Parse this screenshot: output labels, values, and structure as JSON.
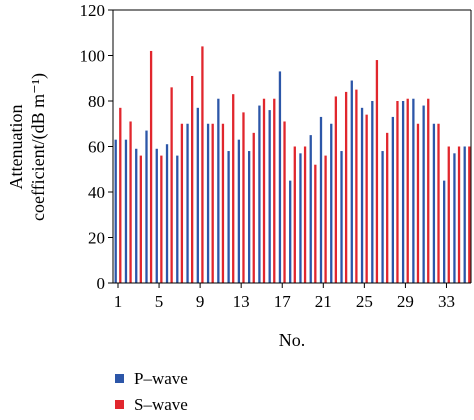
{
  "chart_data": {
    "type": "bar",
    "title": "",
    "xlabel": "No.",
    "ylabel_line1": "Attenuation",
    "ylabel_line2": "coefficient/(dB m⁻¹)",
    "xlim": [
      1,
      35
    ],
    "ylim": [
      0,
      120
    ],
    "x_ticks": [
      "1",
      "5",
      "9",
      "13",
      "17",
      "21",
      "25",
      "29",
      "33"
    ],
    "y_ticks": [
      "0",
      "20",
      "40",
      "60",
      "80",
      "100",
      "120"
    ],
    "legend_position": "bottom-left",
    "categories": [
      1,
      2,
      3,
      4,
      5,
      6,
      7,
      8,
      9,
      10,
      11,
      12,
      13,
      14,
      15,
      16,
      17,
      18,
      19,
      20,
      21,
      22,
      23,
      24,
      25,
      26,
      27,
      28,
      29,
      30,
      31,
      32,
      33,
      34,
      35
    ],
    "series": [
      {
        "name": "P–wave",
        "color": "#2c56a8",
        "values": [
          63,
          63,
          59,
          67,
          59,
          61,
          56,
          70,
          77,
          70,
          81,
          58,
          63,
          58,
          78,
          76,
          93,
          45,
          57,
          65,
          73,
          70,
          58,
          89,
          77,
          80,
          58,
          73,
          80,
          81,
          78,
          70,
          45,
          57,
          60
        ]
      },
      {
        "name": "S–wave",
        "color": "#e1262d",
        "values": [
          77,
          71,
          56,
          102,
          56,
          86,
          70,
          91,
          104,
          70,
          70,
          83,
          75,
          66,
          81,
          81,
          71,
          60,
          60,
          52,
          56,
          82,
          84,
          85,
          74,
          98,
          66,
          80,
          81,
          70,
          81,
          70,
          60,
          60,
          60
        ]
      }
    ]
  }
}
